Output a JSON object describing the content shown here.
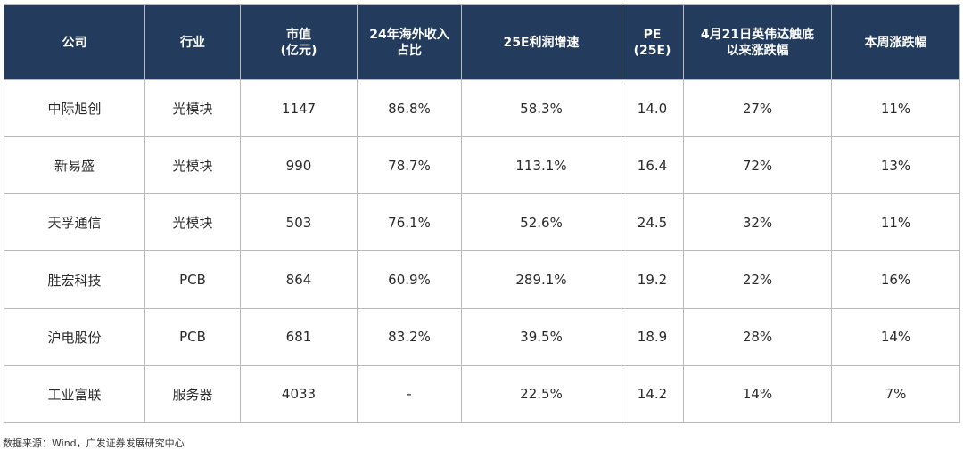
{
  "table": {
    "headers": [
      {
        "lines": [
          "公司"
        ]
      },
      {
        "lines": [
          "行业"
        ]
      },
      {
        "lines": [
          "市值",
          "(亿元)"
        ]
      },
      {
        "lines": [
          "24年海外收入",
          "占比"
        ]
      },
      {
        "lines": [
          "25E利润增速"
        ]
      },
      {
        "lines": [
          "PE",
          "(25E)"
        ]
      },
      {
        "lines": [
          "4月21日英伟达触底",
          "以来涨跌幅"
        ]
      },
      {
        "lines": [
          "本周涨跌幅"
        ]
      }
    ],
    "rows": [
      [
        "中际旭创",
        "光模块",
        "1147",
        "86.8%",
        "58.3%",
        "14.0",
        "27%",
        "11%"
      ],
      [
        "新易盛",
        "光模块",
        "990",
        "78.7%",
        "113.1%",
        "16.4",
        "72%",
        "13%"
      ],
      [
        "天孚通信",
        "光模块",
        "503",
        "76.1%",
        "52.6%",
        "24.5",
        "32%",
        "11%"
      ],
      [
        "胜宏科技",
        "PCB",
        "864",
        "60.9%",
        "289.1%",
        "19.2",
        "22%",
        "16%"
      ],
      [
        "沪电股份",
        "PCB",
        "681",
        "83.2%",
        "39.5%",
        "18.9",
        "28%",
        "14%"
      ],
      [
        "工业富联",
        "服务器",
        "4033",
        "-",
        "22.5%",
        "14.2",
        "14%",
        "7%"
      ]
    ]
  },
  "source": "数据来源：Wind，广发证券发展研究中心",
  "colors": {
    "header_bg": "#233c5d",
    "header_text": "#ffffff",
    "border": "#b9b9b9"
  }
}
